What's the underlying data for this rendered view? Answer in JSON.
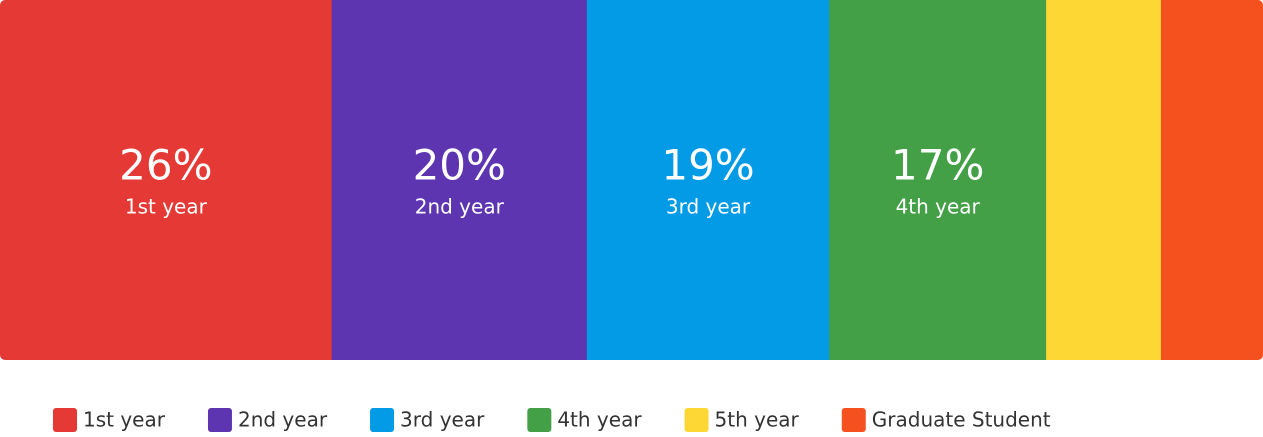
{
  "chart_data": {
    "type": "stacked_bar",
    "series": [
      {
        "name": "1st year",
        "color": "#e53935",
        "values": [
          26
        ],
        "value_labels": [
          "26%"
        ]
      },
      {
        "name": "2nd year",
        "color": "#5e35b1",
        "values": [
          20
        ],
        "value_labels": [
          "20%"
        ]
      },
      {
        "name": "3rd year",
        "color": "#039be5",
        "values": [
          19
        ],
        "value_labels": [
          "19%"
        ]
      },
      {
        "name": "4th year",
        "color": "#43a047",
        "values": [
          17
        ],
        "value_labels": [
          "17%"
        ]
      },
      {
        "name": "5th year",
        "color": "#fdd835",
        "values": [
          9
        ]
      },
      {
        "name": "Graduate Student",
        "color": "#f4511e",
        "values": [
          8
        ]
      }
    ],
    "legend": "bottom"
  }
}
